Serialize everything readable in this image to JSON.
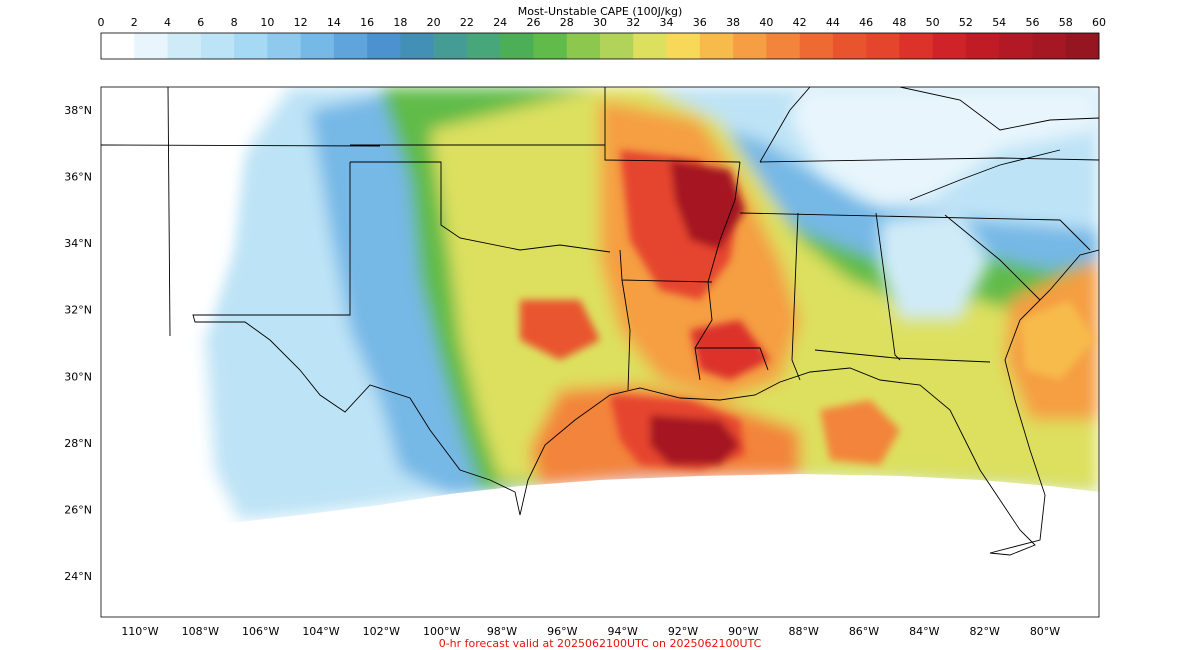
{
  "colorbar": {
    "title": "Most-Unstable CAPE (100J/kg)",
    "ticks": [
      "0",
      "2",
      "4",
      "6",
      "8",
      "10",
      "12",
      "14",
      "16",
      "18",
      "20",
      "22",
      "24",
      "26",
      "28",
      "30",
      "32",
      "34",
      "36",
      "38",
      "40",
      "42",
      "44",
      "46",
      "48",
      "50",
      "52",
      "54",
      "56",
      "58",
      "60"
    ],
    "colors": [
      "#ffffff",
      "#e8f5fc",
      "#d0ebf8",
      "#bde3f6",
      "#a6d9f3",
      "#8fcaee",
      "#76b8e6",
      "#5fa5dc",
      "#4c92d0",
      "#4390b6",
      "#449c94",
      "#47a67a",
      "#4caf58",
      "#60bb4a",
      "#8cc84e",
      "#b1d35a",
      "#dde05e",
      "#f8d858",
      "#f7bb4b",
      "#f59e43",
      "#f3843b",
      "#ee6a32",
      "#e9542e",
      "#e5452d",
      "#dc3229",
      "#cf2229",
      "#c11b26",
      "#b31924",
      "#a51722",
      "#951620"
    ]
  },
  "yaxis": {
    "labels": [
      "38°N",
      "36°N",
      "34°N",
      "32°N",
      "30°N",
      "28°N",
      "26°N",
      "24°N"
    ],
    "values": [
      38,
      36,
      34,
      32,
      30,
      28,
      26,
      24
    ]
  },
  "xaxis": {
    "labels": [
      "110°W",
      "108°W",
      "106°W",
      "104°W",
      "102°W",
      "100°W",
      "98°W",
      "96°W",
      "94°W",
      "92°W",
      "90°W",
      "88°W",
      "86°W",
      "84°W",
      "82°W",
      "80°W"
    ],
    "values": [
      -110,
      -108,
      -106,
      -104,
      -102,
      -100,
      -98,
      -96,
      -94,
      -92,
      -90,
      -88,
      -86,
      -84,
      -82,
      -80
    ]
  },
  "footer": {
    "caption": "0-hr forecast valid at 2025062100UTC on 2025062100UTC",
    "color": "#e8120c"
  }
}
